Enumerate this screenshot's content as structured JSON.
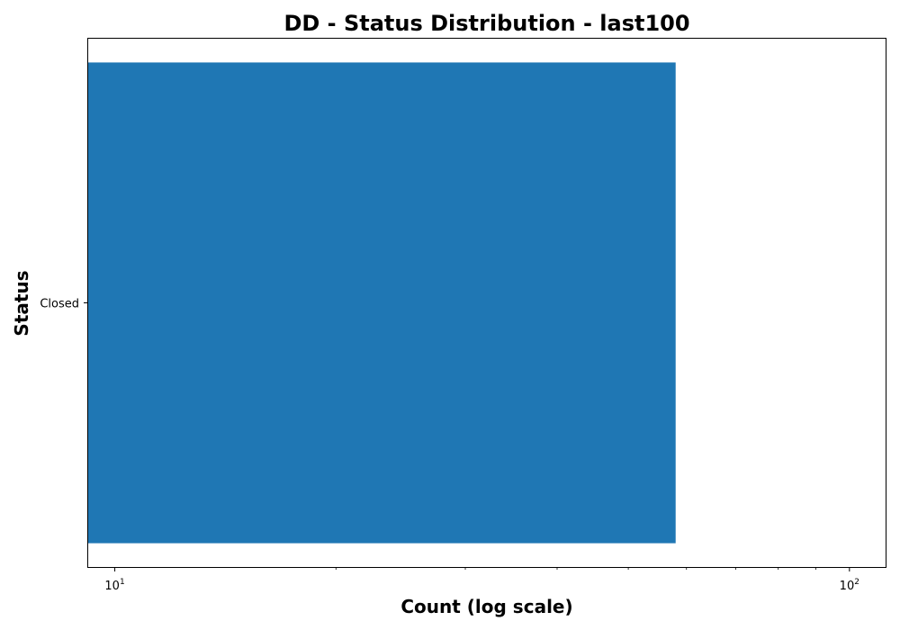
{
  "chart_data": {
    "type": "bar",
    "orientation": "horizontal",
    "title": "DD - Status Distribution - last100",
    "xlabel": "Count (log scale)",
    "ylabel": "Status",
    "x_scale": "log",
    "xlim": [
      9.2,
      112
    ],
    "categories": [
      "Closed"
    ],
    "values": [
      58
    ],
    "x_ticks": [
      {
        "value": 10,
        "base": "10",
        "exp": "1"
      },
      {
        "value": 100,
        "base": "10",
        "exp": "2"
      }
    ],
    "grid": false,
    "legend": "none",
    "colors": {
      "bar": "#1f77b4",
      "axis": "#000000"
    }
  }
}
